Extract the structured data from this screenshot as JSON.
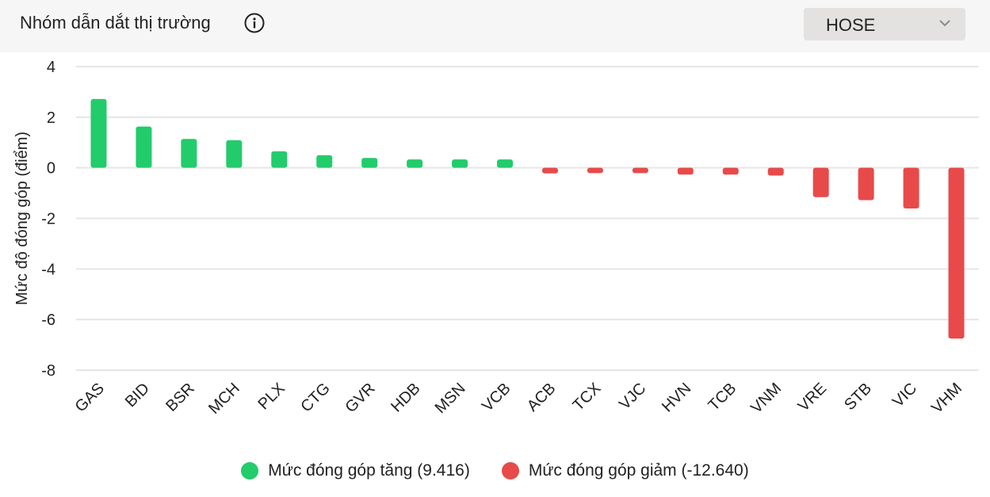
{
  "header": {
    "title": "Nhóm dẫn dắt thị trường",
    "info_icon": "info-circle-icon",
    "exchange_select": {
      "value": "HOSE",
      "icon": "chevron-down-icon"
    }
  },
  "colors": {
    "positive": "#22cc6b",
    "negative": "#e84a4a",
    "grid": "#e6e6e6"
  },
  "chart_data": {
    "type": "bar",
    "title": "",
    "xlabel": "",
    "ylabel": "Mức độ đóng góp (điểm)",
    "ylim": [
      -8,
      4
    ],
    "yticks": [
      4,
      2,
      0,
      -2,
      -4,
      -6,
      -8
    ],
    "grid": true,
    "legend_position": "bottom",
    "categories": [
      "GAS",
      "BID",
      "BSR",
      "MCH",
      "PLX",
      "CTG",
      "GVR",
      "HDB",
      "MSN",
      "VCB",
      "ACB",
      "TCX",
      "VJC",
      "HVN",
      "TCB",
      "VNM",
      "VRE",
      "STB",
      "VIC",
      "VHM"
    ],
    "values": [
      2.72,
      1.63,
      1.14,
      1.09,
      0.65,
      0.5,
      0.39,
      0.33,
      0.33,
      0.33,
      -0.22,
      -0.21,
      -0.21,
      -0.27,
      -0.27,
      -0.31,
      -1.16,
      -1.28,
      -1.61,
      -6.75
    ],
    "series": [
      {
        "name": "Mức đóng góp tăng (9.416)",
        "color": "#22cc6b"
      },
      {
        "name": "Mức đóng góp giảm (-12.640)",
        "color": "#e84a4a"
      }
    ]
  }
}
